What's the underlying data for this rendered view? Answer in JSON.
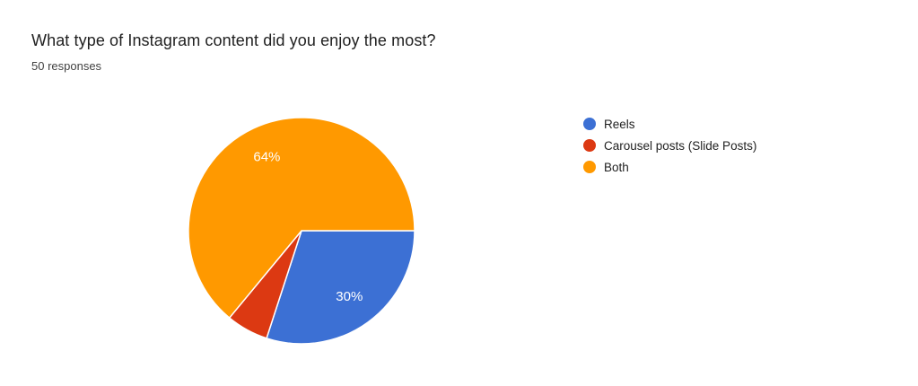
{
  "header": {
    "title": "What type of Instagram content did you enjoy the most?",
    "subtitle": "50 responses"
  },
  "chart_data": {
    "type": "pie",
    "title": "What type of Instagram content did you enjoy the most?",
    "responses_text": "50 responses",
    "total_responses": 50,
    "start_angle_deg": 0,
    "direction": "clockwise",
    "legend_position": "right",
    "label_color": "#ffffff",
    "slice_separator_color": "#ffffff",
    "slices": [
      {
        "label": "Reels",
        "percent": 30,
        "color": "#3C70D4",
        "data_label": "30%",
        "label_visible": true
      },
      {
        "label": "Carousel posts (Slide Posts)",
        "percent": 6,
        "color": "#DC3912",
        "data_label": "",
        "label_visible": false
      },
      {
        "label": "Both",
        "percent": 64,
        "color": "#FF9900",
        "data_label": "64%",
        "label_visible": true
      }
    ]
  }
}
